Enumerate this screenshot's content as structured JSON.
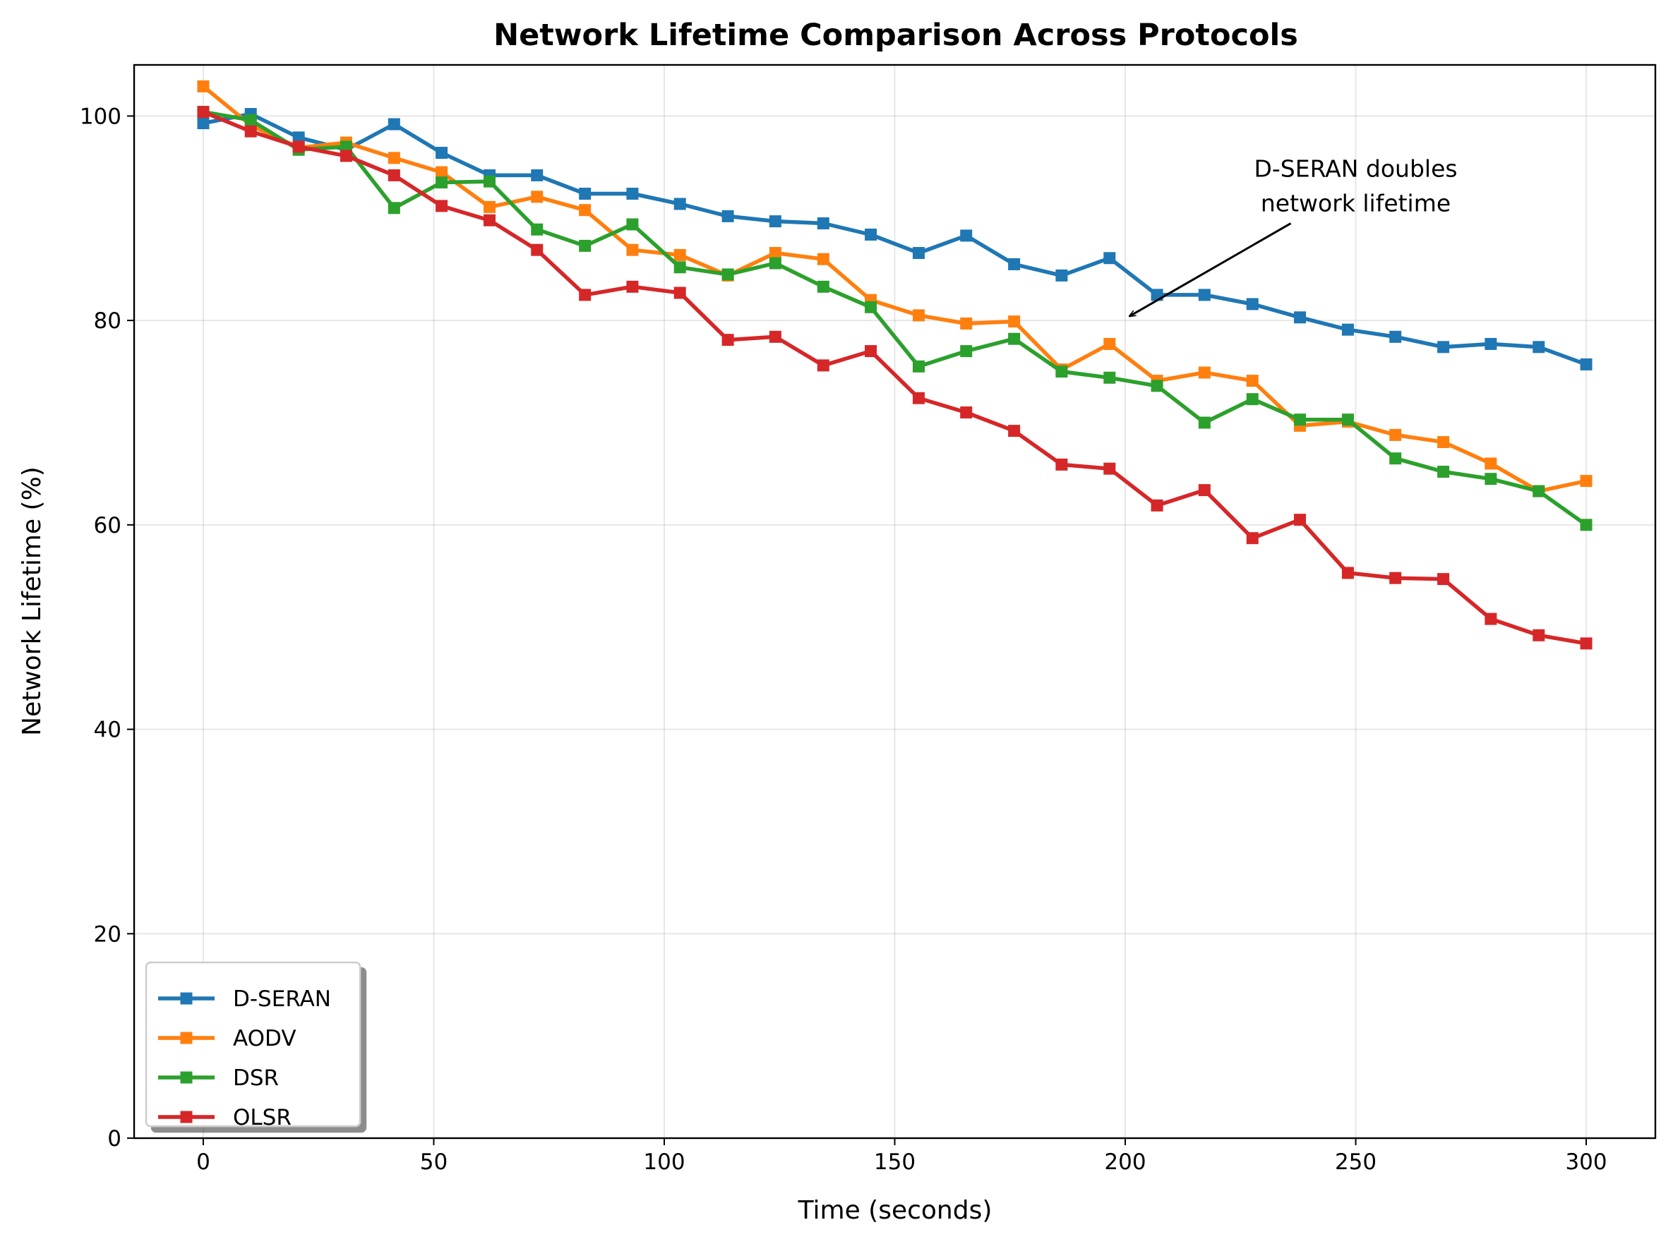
{
  "chart_data": {
    "type": "line",
    "title": "Network Lifetime Comparison Across Protocols",
    "xlabel": "Time (seconds)",
    "ylabel": "Network Lifetime (%)",
    "xlim": [
      -15,
      315
    ],
    "ylim": [
      0,
      105
    ],
    "xticks": [
      0,
      50,
      100,
      150,
      200,
      250,
      300
    ],
    "yticks": [
      0,
      20,
      40,
      60,
      80,
      100
    ],
    "grid": true,
    "legend_position": "lower-left",
    "marker": "square",
    "x": [
      0,
      10.3,
      20.7,
      31.0,
      41.4,
      51.7,
      62.1,
      72.4,
      82.8,
      93.1,
      103.4,
      113.8,
      124.1,
      134.5,
      144.8,
      155.2,
      165.5,
      175.9,
      186.2,
      196.6,
      206.9,
      217.2,
      227.6,
      237.9,
      248.3,
      258.6,
      269.0,
      279.3,
      289.7,
      300
    ],
    "series": [
      {
        "name": "D-SERAN",
        "color": "#1f77b4",
        "values": [
          99.3,
          100.2,
          97.9,
          96.7,
          99.2,
          96.4,
          94.2,
          94.2,
          92.4,
          92.4,
          91.4,
          90.2,
          89.7,
          89.5,
          88.4,
          86.6,
          88.3,
          85.5,
          84.4,
          86.1,
          82.5,
          82.5,
          81.6,
          80.3,
          79.1,
          78.4,
          77.4,
          77.7,
          77.4,
          75.7
        ]
      },
      {
        "name": "AODV",
        "color": "#ff7f0e",
        "values": [
          102.9,
          99.1,
          96.9,
          97.4,
          95.9,
          94.5,
          91.1,
          92.1,
          90.8,
          86.9,
          86.4,
          84.4,
          86.6,
          86.0,
          82.0,
          80.5,
          79.7,
          79.9,
          75.2,
          77.7,
          74.1,
          74.9,
          74.1,
          69.7,
          70.1,
          68.8,
          68.1,
          66.0,
          63.3,
          64.3
        ]
      },
      {
        "name": "DSR",
        "color": "#2ca02c",
        "values": [
          100.4,
          99.6,
          96.7,
          97.0,
          91.0,
          93.5,
          93.6,
          88.9,
          87.3,
          89.4,
          85.2,
          84.5,
          85.6,
          83.3,
          81.3,
          75.5,
          77.0,
          78.2,
          75.0,
          74.4,
          73.6,
          70.0,
          72.3,
          70.3,
          70.3,
          66.5,
          65.2,
          64.5,
          63.3,
          60.0
        ]
      },
      {
        "name": "OLSR",
        "color": "#d62728",
        "values": [
          100.4,
          98.5,
          97.0,
          96.1,
          94.2,
          91.2,
          89.8,
          86.9,
          82.5,
          83.3,
          82.7,
          78.1,
          78.4,
          75.6,
          77.0,
          72.4,
          71.0,
          69.2,
          65.9,
          65.5,
          61.9,
          63.4,
          58.7,
          60.5,
          55.3,
          54.8,
          54.7,
          50.8,
          49.2,
          48.4
        ]
      }
    ],
    "annotation": {
      "lines": [
        "D-SERAN doubles",
        "network lifetime"
      ],
      "arrow_target": [
        200,
        80
      ],
      "text_anchor_data": [
        250,
        91.5
      ]
    }
  }
}
